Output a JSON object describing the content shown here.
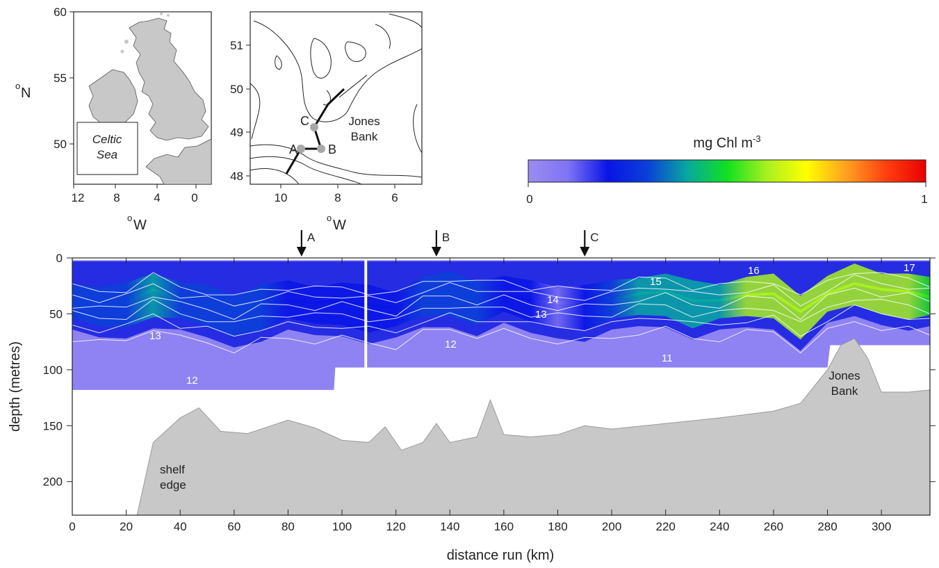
{
  "colorbar": {
    "title_main": "mg Chl m",
    "title_sup": "-3",
    "min_label": "0",
    "max_label": "1",
    "colors": [
      "#9b8cf0",
      "#7f74f4",
      "#0a14e6",
      "#0a40d8",
      "#08a8a0",
      "#10e020",
      "#a8f020",
      "#ffff00",
      "#ffa020",
      "#ff4010",
      "#e80000"
    ]
  },
  "inset_overview": {
    "lat_ticks": [
      "60",
      "55",
      "50"
    ],
    "lon_ticks": [
      "12",
      "8",
      "4",
      "0"
    ],
    "lat_label_main": "N",
    "lat_label_sup": "o",
    "lon_label_main": "W",
    "lon_label_sup": "o",
    "box_line1": "Celtic",
    "box_line2": "Sea",
    "land_color": "#c8c8c8"
  },
  "inset_detail": {
    "lat_ticks": [
      "51",
      "50",
      "49",
      "48"
    ],
    "lon_ticks": [
      "10",
      "8",
      "6"
    ],
    "lon_label_main": "W",
    "lon_label_sup": "o",
    "station_A": "A",
    "station_B": "B",
    "station_C": "C",
    "bank_line1": "Jones",
    "bank_line2": "Bank"
  },
  "section_markers": [
    {
      "label": "A",
      "distance_km": 85
    },
    {
      "label": "B",
      "distance_km": 135
    },
    {
      "label": "C",
      "distance_km": 190
    }
  ],
  "chart_data": {
    "type": "heatmap",
    "xlabel": "distance run (km)",
    "ylabel": "depth (metres)",
    "xlim": [
      0,
      318
    ],
    "ylim": [
      230,
      0
    ],
    "x_ticks": [
      "0",
      "20",
      "40",
      "60",
      "80",
      "100",
      "120",
      "140",
      "160",
      "180",
      "200",
      "220",
      "240",
      "260",
      "280",
      "300"
    ],
    "y_ticks": [
      "0",
      "50",
      "100",
      "150",
      "200"
    ],
    "isotherm_labels": [
      "13",
      "12",
      "12",
      "11",
      "14",
      "13",
      "15",
      "16",
      "17"
    ],
    "annotations": {
      "shelf_line1": "shelf",
      "shelf_line2": "edge",
      "bank_line1": "Jones",
      "bank_line2": "Bank"
    },
    "colorbar_range": [
      0,
      1
    ],
    "seabed_profile": {
      "x": [
        24,
        30,
        40,
        47,
        55,
        65,
        80,
        90,
        100,
        110,
        116,
        122,
        130,
        135,
        140,
        150,
        155,
        160,
        170,
        180,
        190,
        200,
        220,
        240,
        260,
        270,
        280,
        285,
        290,
        295,
        300,
        310,
        318
      ],
      "depth": [
        230,
        165,
        143,
        134,
        155,
        157,
        145,
        152,
        163,
        165,
        151,
        172,
        165,
        148,
        165,
        160,
        127,
        158,
        160,
        158,
        150,
        153,
        148,
        143,
        137,
        130,
        100,
        78,
        72,
        90,
        120,
        120,
        118
      ]
    },
    "chl_max_layer": {
      "x": [
        0,
        10,
        20,
        30,
        40,
        50,
        60,
        70,
        80,
        90,
        100,
        110,
        120,
        130,
        140,
        150,
        160,
        170,
        180,
        190,
        200,
        210,
        220,
        230,
        240,
        250,
        260,
        270,
        280,
        290,
        300,
        310,
        318
      ],
      "depth": [
        38,
        42,
        40,
        28,
        38,
        42,
        48,
        40,
        38,
        40,
        38,
        42,
        45,
        33,
        30,
        35,
        32,
        38,
        40,
        40,
        38,
        32,
        30,
        38,
        38,
        33,
        32,
        48,
        32,
        23,
        28,
        30,
        35
      ],
      "intensity": [
        0.45,
        0.4,
        0.45,
        0.55,
        0.45,
        0.42,
        0.48,
        0.4,
        0.35,
        0.3,
        0.3,
        0.3,
        0.35,
        0.45,
        0.45,
        0.4,
        0.38,
        0.35,
        0.25,
        0.3,
        0.45,
        0.55,
        0.55,
        0.58,
        0.62,
        0.9,
        0.92,
        0.88,
        0.85,
        0.9,
        0.88,
        0.8,
        0.7
      ]
    },
    "data_bottom": {
      "x": [
        0,
        97,
        97.5,
        280,
        281,
        318
      ],
      "depth": [
        118,
        118,
        98,
        98,
        78,
        78
      ]
    }
  }
}
